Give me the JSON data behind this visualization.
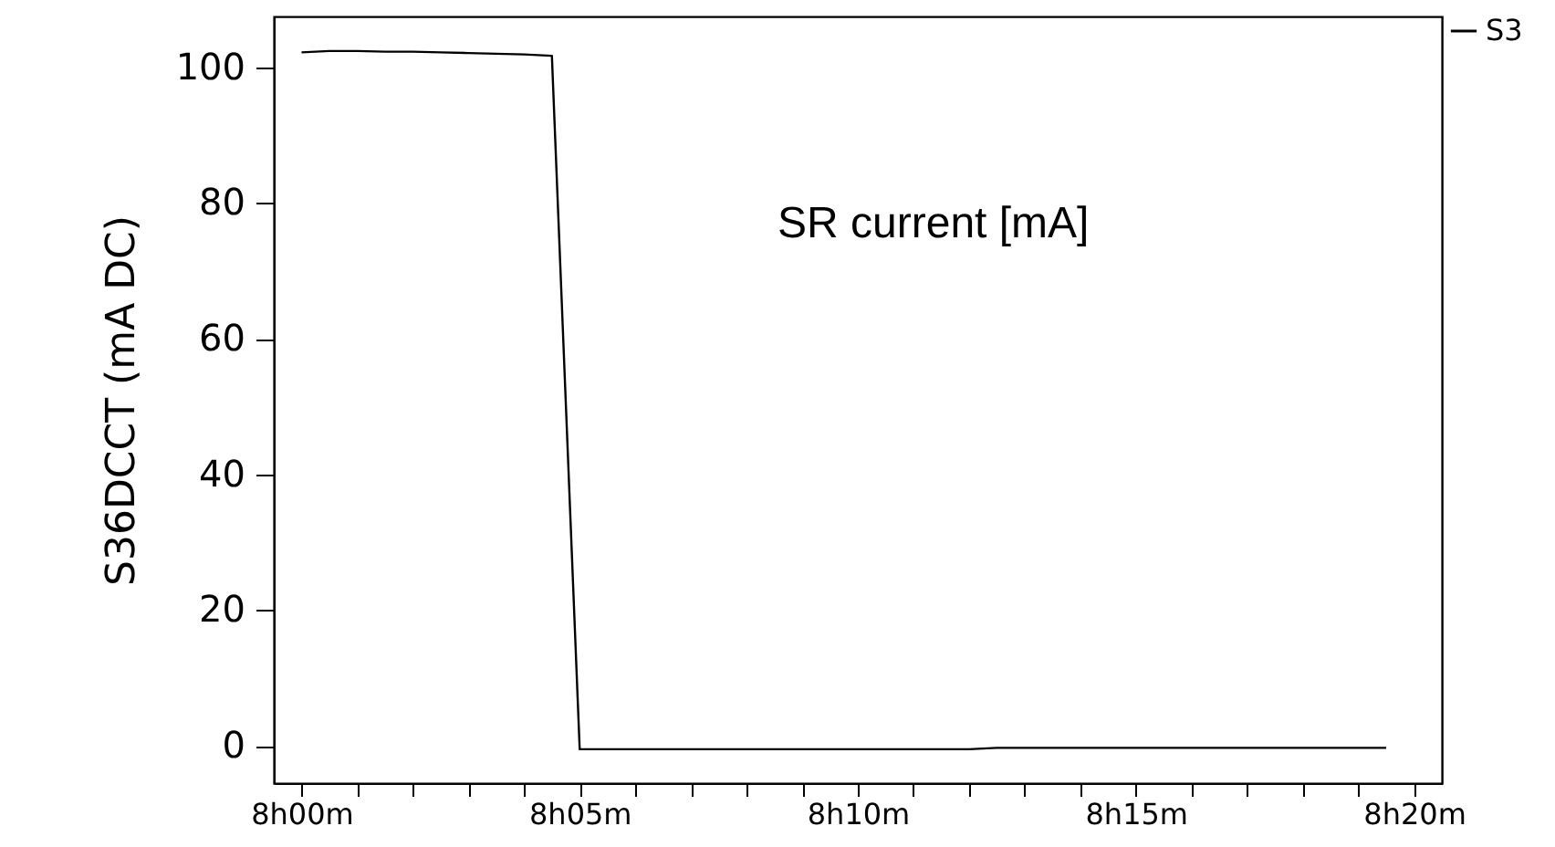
{
  "chart_data": {
    "type": "line",
    "ylabel": "S36DCCT (mA DC)",
    "annotations": [
      "SR current [mA]"
    ],
    "categories": [
      "8h00m",
      null,
      null,
      null,
      null,
      null,
      null,
      null,
      null,
      null,
      "8h05m",
      null,
      null,
      null,
      null,
      null,
      null,
      null,
      null,
      null,
      "8h10m",
      null,
      null,
      null,
      null,
      null,
      null,
      null,
      null,
      null,
      "8h15m",
      null,
      null,
      null,
      null,
      null,
      null,
      null,
      null,
      null,
      "8h20m"
    ],
    "ylim": [
      -5.5,
      107.5
    ],
    "yticks": [
      0,
      20,
      40,
      60,
      80,
      100
    ],
    "legend": "top right",
    "grid": false,
    "line_style": "solid",
    "series": [
      {
        "name": "S3",
        "color": "#000000",
        "values": [
          102.2,
          102.4,
          102.4,
          102.3,
          102.3,
          102.2,
          102.1,
          102.0,
          101.9,
          101.7,
          -0.5,
          -0.5,
          -0.5,
          -0.5,
          -0.5,
          -0.5,
          -0.5,
          -0.5,
          -0.5,
          -0.5,
          -0.5,
          -0.5,
          -0.5,
          -0.5,
          -0.5,
          -0.3,
          -0.3,
          -0.3,
          -0.3,
          -0.3,
          -0.3,
          -0.3,
          -0.3,
          -0.3,
          -0.3,
          -0.3,
          -0.3,
          -0.3,
          -0.3,
          -0.3,
          null
        ]
      }
    ]
  }
}
